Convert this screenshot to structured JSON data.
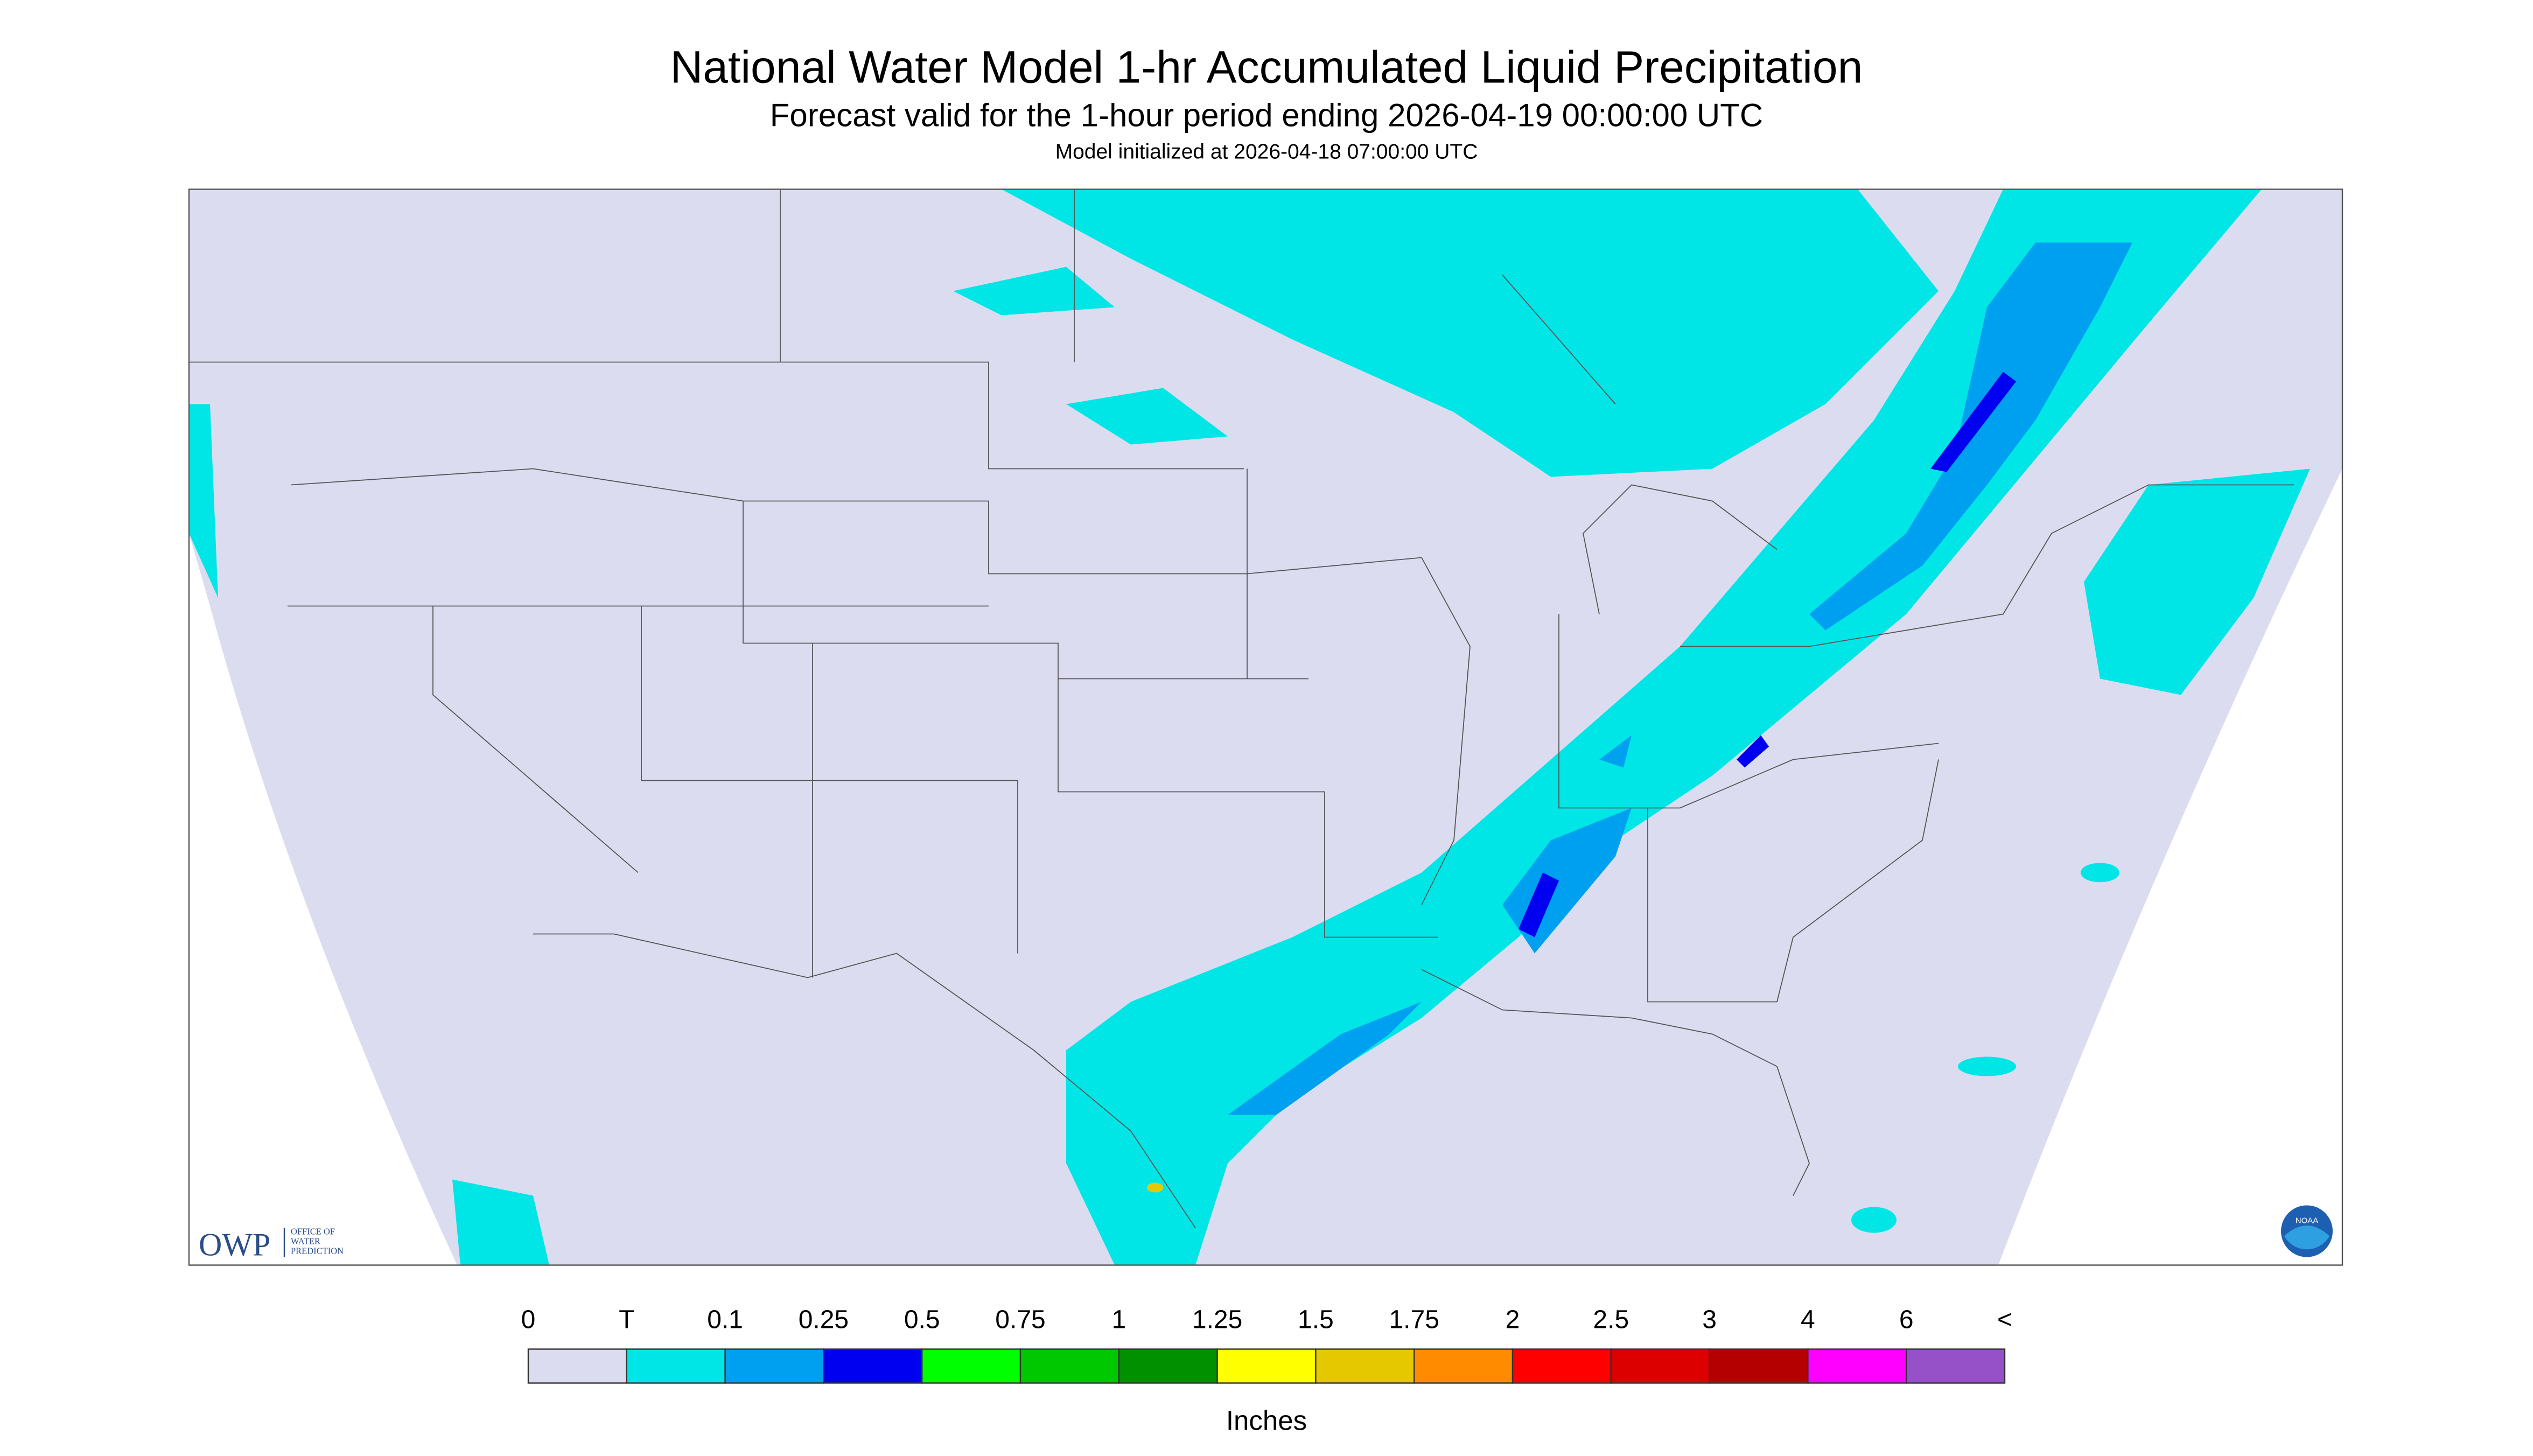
{
  "header": {
    "title": "National Water Model 1-hr Accumulated Liquid Precipitation",
    "subtitle": "Forecast valid for the 1-hour period ending 2026-04-19 00:00:00 UTC",
    "initialized": "Model initialized at 2026-04-18 07:00:00 UTC"
  },
  "logos": {
    "owp": "OWP",
    "owp_lines": [
      "OFFICE OF",
      "WATER",
      "PREDICTION"
    ],
    "noaa": "NOAA"
  },
  "legend": {
    "labels": [
      "0",
      "T",
      "0.1",
      "0.25",
      "0.5",
      "0.75",
      "1",
      "1.25",
      "1.5",
      "1.75",
      "2",
      "2.5",
      "3",
      "4",
      "6",
      "<"
    ],
    "colors": [
      "#dcdcf0",
      "#00e6e6",
      "#00a0f0",
      "#0000f0",
      "#00ff00",
      "#00c800",
      "#009000",
      "#ffff00",
      "#e6c800",
      "#ff8c00",
      "#ff0000",
      "#dc0000",
      "#b40000",
      "#ff00ff",
      "#9650c8"
    ],
    "unit": "Inches"
  }
}
